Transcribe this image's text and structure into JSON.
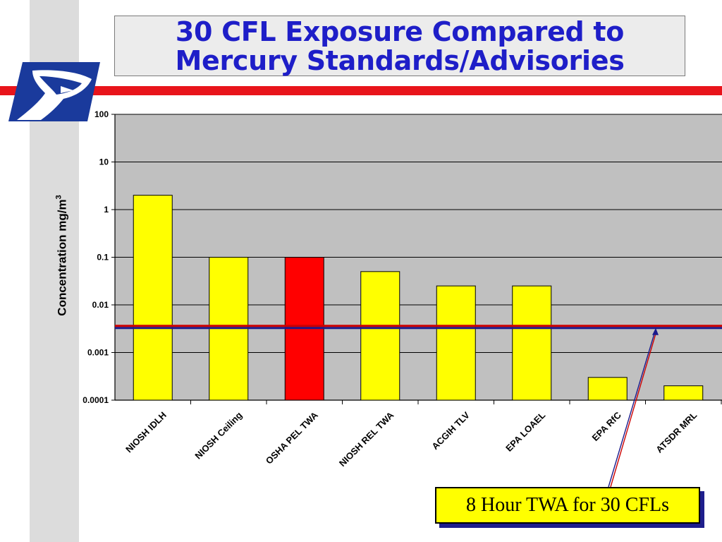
{
  "title": {
    "line1": "30 CFL Exposure Compared to",
    "line2": "Mercury Standards/Advisories"
  },
  "logo": {
    "icon": "usps-eagle-icon",
    "color": "#1a3a9c"
  },
  "colors": {
    "title": "#1e1ec8",
    "band": "#e8141b",
    "bar_default": "#ffff00",
    "bar_highlight": "#ff0000",
    "plot_bg": "#c0c0c0",
    "reference_line": "#cc0000",
    "reference_line_shadow": "#1a1a8c"
  },
  "callout": {
    "text": "8 Hour TWA for 30 CFLs"
  },
  "chart_data": {
    "type": "bar",
    "yscale": "log",
    "ylim": [
      0.0001,
      100
    ],
    "yticks": [
      "0.0001",
      "0.001",
      "0.01",
      "0.1",
      "1",
      "10",
      "100"
    ],
    "ytick_values": [
      0.0001,
      0.001,
      0.01,
      0.1,
      1,
      10,
      100
    ],
    "ylabel": "Concentration mg/m",
    "ylabel_sup": "3",
    "grid": true,
    "categories": [
      "NIOSH IDLH",
      "NIOSH Ceiling",
      "OSHA PEL TWA",
      "NIOSH REL TWA",
      "ACGIH TLV",
      "EPA LOAEL",
      "EPA RfC",
      "ATSDR MRL"
    ],
    "values": [
      2,
      0.1,
      0.1,
      0.05,
      0.025,
      0.025,
      0.0003,
      0.0002
    ],
    "highlight": [
      "OSHA PEL TWA"
    ],
    "reference_value": 0.0035,
    "reference_label": "8 Hour TWA for 30 CFLs"
  }
}
